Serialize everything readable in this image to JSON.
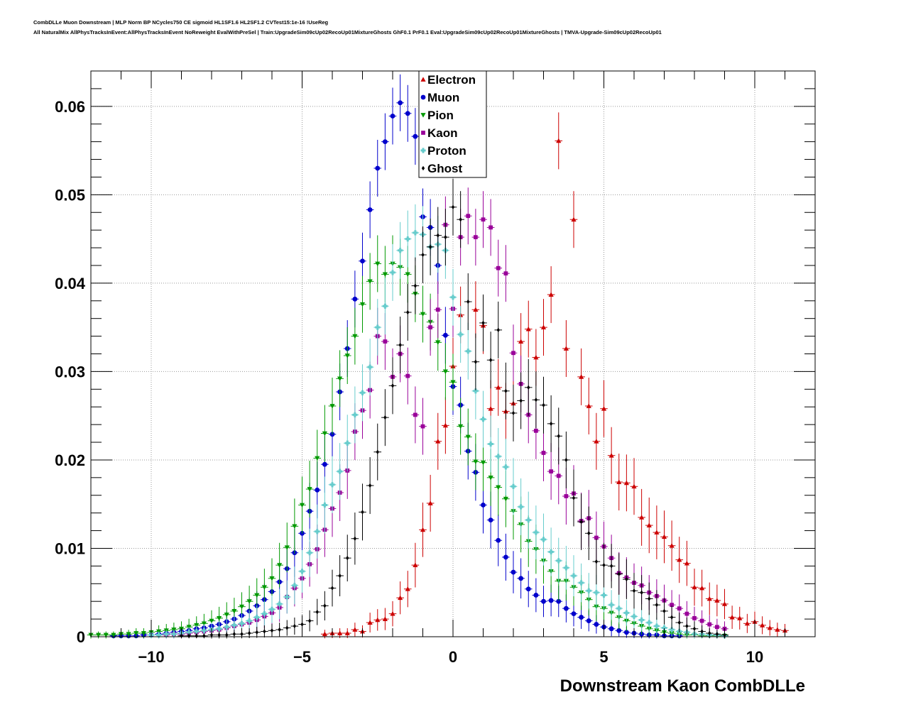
{
  "header": {
    "title_line1": "CombDLLe Muon Downstream | MLP Norm BP NCycles750 CE sigmoid HL1SF1.6 HL2SF1.2 CVTest15:1e-16 !UseReg",
    "title_line2": "All NaturalMix AllPhysTracksInEvent:AllPhysTracksInEvent NoReweight EvalWithPreSel | Train:UpgradeSim09cUp02RecoUp01MixtureGhosts GhF0.1 PrF0.1 Eval:UpgradeSim09cUp02RecoUp01MixtureGhosts | TMVA-Upgrade-Sim09cUp02RecoUp01"
  },
  "chart_data": {
    "type": "scatter",
    "xlabel": "Downstream Kaon CombDLLe",
    "ylabel": "",
    "xlim": [
      -12,
      12
    ],
    "ylim": [
      0,
      0.064
    ],
    "xticks": [
      -10,
      -5,
      0,
      5,
      10
    ],
    "xtick_labels": [
      "−10",
      "−5",
      "0",
      "5",
      "10"
    ],
    "yticks": [
      0,
      0.01,
      0.02,
      0.03,
      0.04,
      0.05,
      0.06
    ],
    "ytick_labels": [
      "0",
      "0.01",
      "0.02",
      "0.03",
      "0.04",
      "0.05",
      "0.06"
    ],
    "grid": true,
    "legend_position": "top-center",
    "series": [
      {
        "name": "Electron",
        "color": "#cc0000",
        "marker": "triangle-up",
        "x": [
          -4.25,
          -4.0,
          -3.75,
          -3.5,
          -3.25,
          -3.0,
          -2.75,
          -2.5,
          -2.25,
          -2.0,
          -1.75,
          -1.5,
          -1.25,
          -1.0,
          -0.75,
          -0.5,
          -0.25,
          0.0,
          0.25,
          0.75,
          1.0,
          1.25,
          1.5,
          1.75,
          2.0,
          2.25,
          2.5,
          2.75,
          3.0,
          3.25,
          3.5,
          3.75,
          4.0,
          4.25,
          4.5,
          4.75,
          5.0,
          5.25,
          5.5,
          5.75,
          6.0,
          6.25,
          6.5,
          6.75,
          7.0,
          7.25,
          7.5,
          7.75,
          8.0,
          8.25,
          8.5,
          8.75,
          9.0,
          9.25,
          9.5,
          9.75,
          10.0,
          10.25,
          10.5,
          10.75,
          11.0
        ],
        "y": [
          0.0003,
          0.0004,
          0.0004,
          0.0004,
          0.0008,
          0.0006,
          0.0016,
          0.0019,
          0.002,
          0.0026,
          0.0044,
          0.0054,
          0.0081,
          0.0121,
          0.0151,
          0.0221,
          0.0239,
          0.0306,
          0.0364,
          0.037,
          0.0352,
          0.0258,
          0.0282,
          0.0255,
          0.0264,
          0.0334,
          0.0348,
          0.0316,
          0.035,
          0.0387,
          0.0561,
          0.0326,
          0.0472,
          0.0294,
          0.0261,
          0.0221,
          0.0258,
          0.0205,
          0.0175,
          0.0174,
          0.017,
          0.0135,
          0.0126,
          0.0118,
          0.0113,
          0.0103,
          0.0087,
          0.0083,
          0.0056,
          0.0055,
          0.0043,
          0.0041,
          0.0037,
          0.0022,
          0.0021,
          0.0015,
          0.0017,
          0.0013,
          0.001,
          0.0008,
          0.0007
        ]
      },
      {
        "name": "Muon",
        "color": "#0000cc",
        "marker": "circle",
        "x": [
          -11.25,
          -11.0,
          -10.75,
          -10.5,
          -10.25,
          -10.0,
          -9.75,
          -9.5,
          -9.25,
          -9.0,
          -8.75,
          -8.5,
          -8.25,
          -8.0,
          -7.75,
          -7.5,
          -7.25,
          -7.0,
          -6.75,
          -6.5,
          -6.25,
          -6.0,
          -5.75,
          -5.5,
          -5.25,
          -5.0,
          -4.75,
          -4.5,
          -4.25,
          -4.0,
          -3.75,
          -3.5,
          -3.25,
          -3.0,
          -2.75,
          -2.5,
          -2.25,
          -2.0,
          -1.75,
          -1.5,
          -1.25,
          -1.0,
          -0.75,
          -0.5,
          -0.25,
          0.0,
          0.25,
          0.5,
          0.75,
          1.0,
          1.25,
          1.5,
          1.75,
          2.0,
          2.25,
          2.5,
          2.75,
          3.0,
          3.25,
          3.5,
          3.75,
          4.0,
          4.25,
          4.5,
          4.75,
          5.0,
          5.25,
          5.5,
          5.75,
          6.0,
          6.25,
          6.5,
          6.75,
          7.0,
          7.25,
          7.5
        ],
        "y": [
          0.0001,
          0.0001,
          0.0001,
          0.0001,
          0.0002,
          0.0002,
          0.0003,
          0.0004,
          0.0005,
          0.0006,
          0.0007,
          0.0009,
          0.001,
          0.0012,
          0.0014,
          0.0017,
          0.002,
          0.0024,
          0.0029,
          0.0035,
          0.0042,
          0.0051,
          0.0062,
          0.0077,
          0.0095,
          0.0117,
          0.0142,
          0.0166,
          0.0195,
          0.0229,
          0.0277,
          0.0326,
          0.0382,
          0.0425,
          0.0483,
          0.053,
          0.056,
          0.0589,
          0.0604,
          0.0592,
          0.0566,
          0.0475,
          0.0463,
          0.042,
          0.0341,
          0.0283,
          0.0262,
          0.021,
          0.0186,
          0.0149,
          0.0132,
          0.0109,
          0.009,
          0.0073,
          0.0066,
          0.0054,
          0.0047,
          0.004,
          0.0041,
          0.004,
          0.0032,
          0.0026,
          0.0022,
          0.0018,
          0.0014,
          0.0011,
          0.0009,
          0.0007,
          0.0005,
          0.0004,
          0.0003,
          0.0002,
          0.0002,
          0.0001,
          0.0001,
          0.0001
        ]
      },
      {
        "name": "Pion",
        "color": "#009900",
        "marker": "triangle-down",
        "x": [
          -12.0,
          -11.75,
          -11.5,
          -11.25,
          -11.0,
          -10.75,
          -10.5,
          -10.25,
          -10.0,
          -9.75,
          -9.5,
          -9.25,
          -9.0,
          -8.75,
          -8.5,
          -8.25,
          -8.0,
          -7.75,
          -7.5,
          -7.25,
          -7.0,
          -6.75,
          -6.5,
          -6.25,
          -6.0,
          -5.75,
          -5.5,
          -5.25,
          -5.0,
          -4.75,
          -4.5,
          -4.25,
          -4.0,
          -3.75,
          -3.5,
          -3.25,
          -3.0,
          -2.75,
          -2.5,
          -2.25,
          -2.0,
          -1.75,
          -1.5,
          -1.25,
          -1.0,
          -0.75,
          -0.5,
          -0.25,
          0.0,
          0.25,
          0.5,
          0.75,
          1.0,
          1.25,
          1.5,
          1.75,
          2.0,
          2.25,
          2.5,
          2.75,
          3.0,
          3.25,
          3.5,
          3.75,
          4.0,
          4.25,
          4.5,
          4.75,
          5.0,
          5.25,
          5.5,
          5.75,
          6.0,
          6.25,
          6.5,
          6.75,
          7.0,
          7.25,
          7.5,
          7.75,
          8.0,
          8.25,
          8.5,
          8.75,
          9.0
        ],
        "y": [
          0.0002,
          0.0002,
          0.0002,
          0.0002,
          0.0003,
          0.0003,
          0.0004,
          0.0004,
          0.0005,
          0.0006,
          0.0007,
          0.0008,
          0.0009,
          0.0011,
          0.0013,
          0.0015,
          0.0018,
          0.0021,
          0.0025,
          0.0029,
          0.0034,
          0.004,
          0.0047,
          0.0056,
          0.0066,
          0.0081,
          0.0101,
          0.0125,
          0.0149,
          0.0167,
          0.0202,
          0.023,
          0.0261,
          0.0292,
          0.0318,
          0.034,
          0.0376,
          0.0402,
          0.0422,
          0.041,
          0.0422,
          0.0418,
          0.041,
          0.0388,
          0.0365,
          0.0356,
          0.0333,
          0.03,
          0.0288,
          0.0238,
          0.0226,
          0.0198,
          0.0197,
          0.018,
          0.0169,
          0.0156,
          0.0142,
          0.0127,
          0.0108,
          0.0099,
          0.0086,
          0.0074,
          0.0063,
          0.0063,
          0.0056,
          0.005,
          0.0042,
          0.0034,
          0.0032,
          0.0027,
          0.0022,
          0.0018,
          0.0015,
          0.0012,
          0.0009,
          0.0007,
          0.0005,
          0.0004,
          0.0003,
          0.0002,
          0.0002,
          0.0001,
          0.0001,
          0.0001,
          0.0001
        ]
      },
      {
        "name": "Kaon",
        "color": "#990099",
        "marker": "square",
        "x": [
          -9.5,
          -9.25,
          -9.0,
          -8.75,
          -8.5,
          -8.25,
          -8.0,
          -7.75,
          -7.5,
          -7.25,
          -7.0,
          -6.75,
          -6.5,
          -6.25,
          -6.0,
          -5.75,
          -5.5,
          -5.25,
          -5.0,
          -4.75,
          -4.5,
          -4.25,
          -4.0,
          -3.75,
          -3.5,
          -3.25,
          -3.0,
          -2.75,
          -2.5,
          -2.25,
          -2.0,
          -1.75,
          -1.5,
          -1.25,
          -1.0,
          -0.75,
          -0.5,
          -0.25,
          0.0,
          0.25,
          0.5,
          0.75,
          1.0,
          1.25,
          1.5,
          1.75,
          2.0,
          2.25,
          2.5,
          2.75,
          3.0,
          3.25,
          3.5,
          3.75,
          4.0,
          4.25,
          4.5,
          4.75,
          5.0,
          5.25,
          5.5,
          5.75,
          6.0,
          6.25,
          6.5,
          6.75,
          7.0,
          7.25,
          7.5,
          7.75,
          8.0,
          8.25,
          8.5,
          8.75,
          9.0
        ],
        "y": [
          0.0002,
          0.0003,
          0.0003,
          0.0004,
          0.0005,
          0.0006,
          0.0007,
          0.0008,
          0.001,
          0.0012,
          0.0014,
          0.0016,
          0.0019,
          0.0023,
          0.0027,
          0.0033,
          0.0045,
          0.0055,
          0.0066,
          0.0082,
          0.0099,
          0.0121,
          0.0145,
          0.0163,
          0.0188,
          0.0232,
          0.0256,
          0.0279,
          0.034,
          0.0334,
          0.0294,
          0.032,
          0.0295,
          0.0251,
          0.0238,
          0.035,
          0.037,
          0.0466,
          0.0371,
          0.0452,
          0.0476,
          0.0452,
          0.0472,
          0.0463,
          0.0417,
          0.0411,
          0.0321,
          0.0286,
          0.0251,
          0.0233,
          0.0208,
          0.0187,
          0.0182,
          0.0159,
          0.0162,
          0.0131,
          0.0134,
          0.0112,
          0.0102,
          0.0089,
          0.0072,
          0.0067,
          0.0061,
          0.0058,
          0.005,
          0.0046,
          0.0041,
          0.0036,
          0.0032,
          0.0026,
          0.0021,
          0.0018,
          0.0014,
          0.0011,
          0.0009
        ]
      },
      {
        "name": "Proton",
        "color": "#66cccc",
        "marker": "cross",
        "x": [
          -10.0,
          -9.75,
          -9.5,
          -9.25,
          -9.0,
          -8.75,
          -8.5,
          -8.25,
          -8.0,
          -7.75,
          -7.5,
          -7.25,
          -7.0,
          -6.75,
          -6.5,
          -6.25,
          -6.0,
          -5.75,
          -5.5,
          -5.25,
          -5.0,
          -4.75,
          -4.5,
          -4.25,
          -4.0,
          -3.75,
          -3.5,
          -3.25,
          -3.0,
          -2.75,
          -2.5,
          -2.25,
          -2.0,
          -1.75,
          -1.5,
          -1.25,
          -1.0,
          -0.75,
          -0.5,
          -0.25,
          0.0,
          0.25,
          0.5,
          0.75,
          1.0,
          1.25,
          1.5,
          1.75,
          2.0,
          2.25,
          2.5,
          2.75,
          3.0,
          3.25,
          3.5,
          3.75,
          4.0,
          4.25,
          4.5,
          4.75,
          5.0,
          5.25,
          5.5,
          5.75,
          6.0,
          6.25,
          6.5,
          6.75,
          7.0,
          7.25,
          7.5,
          7.75,
          8.0,
          8.25,
          8.5,
          8.75,
          9.0
        ],
        "y": [
          0.0002,
          0.0002,
          0.0003,
          0.0003,
          0.0004,
          0.0005,
          0.0006,
          0.0007,
          0.0008,
          0.0009,
          0.0011,
          0.0013,
          0.0015,
          0.0018,
          0.0022,
          0.0026,
          0.0031,
          0.0037,
          0.0045,
          0.0058,
          0.0074,
          0.0095,
          0.0119,
          0.0149,
          0.0172,
          0.0187,
          0.0219,
          0.0251,
          0.0276,
          0.0305,
          0.035,
          0.0374,
          0.0412,
          0.0437,
          0.045,
          0.0457,
          0.0455,
          0.0441,
          0.0444,
          0.0437,
          0.0384,
          0.0342,
          0.0323,
          0.0278,
          0.0246,
          0.0218,
          0.0204,
          0.0192,
          0.017,
          0.0147,
          0.0132,
          0.0118,
          0.011,
          0.0096,
          0.0086,
          0.0078,
          0.0069,
          0.0061,
          0.0052,
          0.005,
          0.0047,
          0.0036,
          0.0032,
          0.0027,
          0.0023,
          0.0019,
          0.0016,
          0.0012,
          0.001,
          0.0008,
          0.0006,
          0.0005,
          0.0003,
          0.0003,
          0.0002,
          0.0002,
          0.0001
        ]
      },
      {
        "name": "Ghost",
        "color": "#000000",
        "marker": "diamond",
        "x": [
          -9.0,
          -8.75,
          -8.5,
          -8.25,
          -8.0,
          -7.75,
          -7.5,
          -7.25,
          -7.0,
          -6.75,
          -6.5,
          -6.25,
          -6.0,
          -5.75,
          -5.5,
          -5.25,
          -5.0,
          -4.75,
          -4.5,
          -4.25,
          -4.0,
          -3.75,
          -3.5,
          -3.25,
          -3.0,
          -2.75,
          -2.5,
          -2.25,
          -2.0,
          -1.75,
          -1.5,
          -1.25,
          -1.0,
          -0.75,
          -0.5,
          -0.25,
          0.0,
          0.25,
          0.5,
          0.75,
          1.0,
          1.25,
          1.5,
          1.75,
          2.0,
          2.25,
          2.5,
          2.75,
          3.0,
          3.25,
          3.5,
          3.75,
          4.0,
          4.25,
          4.5,
          4.75,
          5.0,
          5.25,
          5.5,
          5.75,
          6.0,
          6.25,
          6.5,
          6.75,
          7.0,
          7.25,
          7.5,
          7.75,
          8.0,
          8.25,
          8.5,
          8.75,
          9.0
        ],
        "y": [
          0.0001,
          0.0001,
          0.0001,
          0.0001,
          0.0002,
          0.0002,
          0.0002,
          0.0003,
          0.0003,
          0.0004,
          0.0005,
          0.0006,
          0.0007,
          0.0008,
          0.001,
          0.0012,
          0.0014,
          0.0018,
          0.0028,
          0.0035,
          0.0055,
          0.0069,
          0.0089,
          0.0111,
          0.0141,
          0.0171,
          0.0209,
          0.0248,
          0.0284,
          0.033,
          0.0367,
          0.0397,
          0.0432,
          0.0441,
          0.0454,
          0.0452,
          0.0486,
          0.0472,
          0.0379,
          0.0311,
          0.0355,
          0.0313,
          0.0347,
          0.0278,
          0.0253,
          0.0267,
          0.0282,
          0.0268,
          0.0262,
          0.0241,
          0.0227,
          0.02,
          0.0157,
          0.013,
          0.0117,
          0.0085,
          0.0081,
          0.008,
          0.0071,
          0.0065,
          0.0052,
          0.005,
          0.0043,
          0.0036,
          0.0029,
          0.0022,
          0.0016,
          0.0012,
          0.0009,
          0.0006,
          0.0004,
          0.0003,
          0.0002
        ]
      }
    ]
  }
}
